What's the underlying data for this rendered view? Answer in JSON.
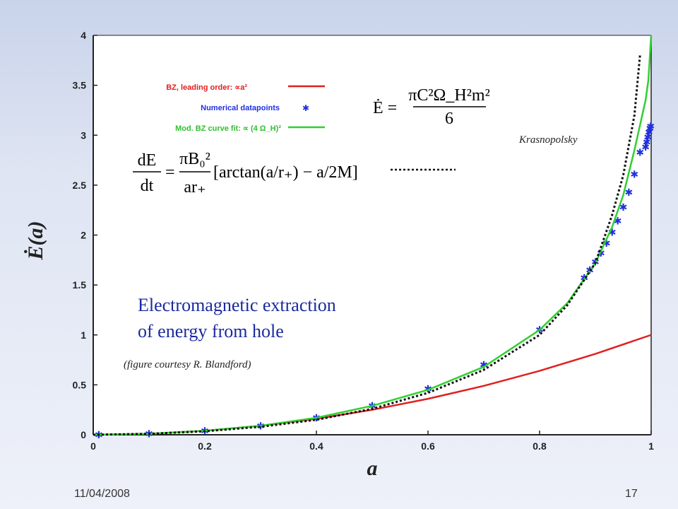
{
  "footer": {
    "date": "11/04/2008",
    "page": "17"
  },
  "chart_data": {
    "type": "line",
    "xlabel": "a",
    "ylabel": "Ė(a)",
    "xlim": [
      0,
      1
    ],
    "ylim": [
      0,
      4
    ],
    "xticks": [
      "0",
      "0.2",
      "0.4",
      "0.6",
      "0.8",
      "1"
    ],
    "yticks": [
      "0",
      "0.5",
      "1",
      "1.5",
      "2",
      "2.5",
      "3",
      "3.5",
      "4"
    ],
    "grid": false,
    "legend_position": "top-left",
    "series": [
      {
        "name": "BZ, leading order: ∝a²",
        "color": "#e02020",
        "style": "solid",
        "x": [
          0,
          0.1,
          0.2,
          0.3,
          0.4,
          0.5,
          0.6,
          0.7,
          0.8,
          0.9,
          1.0
        ],
        "y": [
          0,
          0.01,
          0.04,
          0.09,
          0.16,
          0.25,
          0.36,
          0.49,
          0.64,
          0.81,
          1.0
        ]
      },
      {
        "name": "Numerical datapoints",
        "color": "#2030e0",
        "style": "markers",
        "x": [
          0.01,
          0.1,
          0.2,
          0.3,
          0.4,
          0.5,
          0.6,
          0.7,
          0.8,
          0.88,
          0.89,
          0.9,
          0.91,
          0.92,
          0.93,
          0.94,
          0.95,
          0.96,
          0.97,
          0.98,
          0.99,
          0.992,
          0.994,
          0.996,
          0.998,
          0.999
        ],
        "y": [
          0.0,
          0.01,
          0.04,
          0.09,
          0.17,
          0.29,
          0.46,
          0.7,
          1.05,
          1.57,
          1.65,
          1.73,
          1.82,
          1.92,
          2.03,
          2.14,
          2.28,
          2.43,
          2.61,
          2.83,
          2.88,
          2.93,
          2.98,
          3.03,
          3.07,
          3.09
        ]
      },
      {
        "name": "Mod. BZ curve fit: ∝ (4 Ω_H)²",
        "color": "#30d030",
        "style": "solid",
        "x": [
          0,
          0.1,
          0.2,
          0.3,
          0.4,
          0.5,
          0.6,
          0.7,
          0.8,
          0.85,
          0.9,
          0.93,
          0.95,
          0.97,
          0.98,
          0.99,
          0.995,
          1.0
        ],
        "y": [
          0,
          0.01,
          0.04,
          0.09,
          0.17,
          0.29,
          0.45,
          0.68,
          1.05,
          1.32,
          1.72,
          2.08,
          2.4,
          2.85,
          3.1,
          3.35,
          3.55,
          4.0
        ]
      },
      {
        "name": "",
        "color": "#111111",
        "style": "dotted",
        "x": [
          0,
          0.1,
          0.2,
          0.3,
          0.4,
          0.5,
          0.6,
          0.7,
          0.8,
          0.85,
          0.9,
          0.93,
          0.95,
          0.97,
          0.98
        ],
        "y": [
          0,
          0.01,
          0.035,
          0.08,
          0.15,
          0.26,
          0.42,
          0.65,
          1.0,
          1.3,
          1.72,
          2.2,
          2.6,
          3.2,
          3.8
        ]
      }
    ],
    "annotations": {
      "main_line1": "Electromagnetic extraction",
      "main_line2": "of energy from hole",
      "credit": "(figure courtesy R. Blandford)",
      "krasnopolsky": "Krasnopolsky"
    },
    "formulas": {
      "edot_lhs": "Ė =",
      "edot_num": "πC²Ω_H²m²",
      "edot_den": "6",
      "dedt_num": "dE",
      "dedt_den": "dt",
      "dedt_eq": "=",
      "dedt_mid_num": "πB₀²",
      "dedt_mid_den": "ar₊",
      "dedt_bracket": "[arctan(a/r₊) − a/2M]"
    }
  }
}
